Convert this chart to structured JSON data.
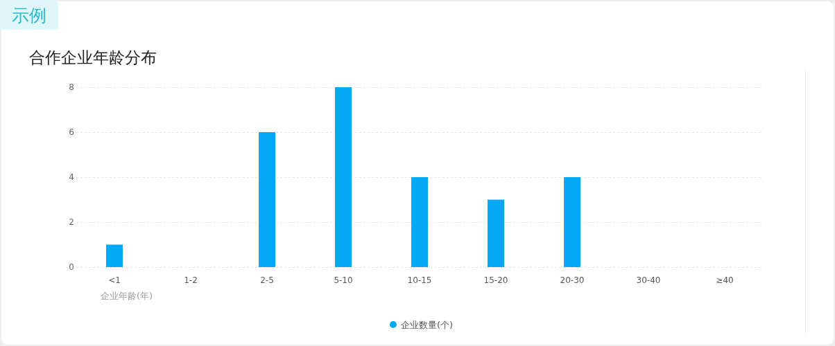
{
  "chart_data": {
    "type": "bar",
    "title": "合作企业年龄分布",
    "annotations": [
      "示例"
    ],
    "xlabel": "企业年龄(年)",
    "categories": [
      "<1",
      "1-2",
      "2-5",
      "5-10",
      "10-15",
      "15-20",
      "20-30",
      "30-40",
      "≥40"
    ],
    "series": [
      {
        "name": "企业数量(个)",
        "color": "#05a8f5",
        "values": [
          1,
          0,
          6,
          8,
          4,
          3,
          4,
          0,
          0
        ]
      }
    ],
    "ylim": [
      0,
      8
    ],
    "yticks": [
      0,
      2,
      4,
      6,
      8
    ],
    "grid": "y",
    "legend": "bottom"
  }
}
